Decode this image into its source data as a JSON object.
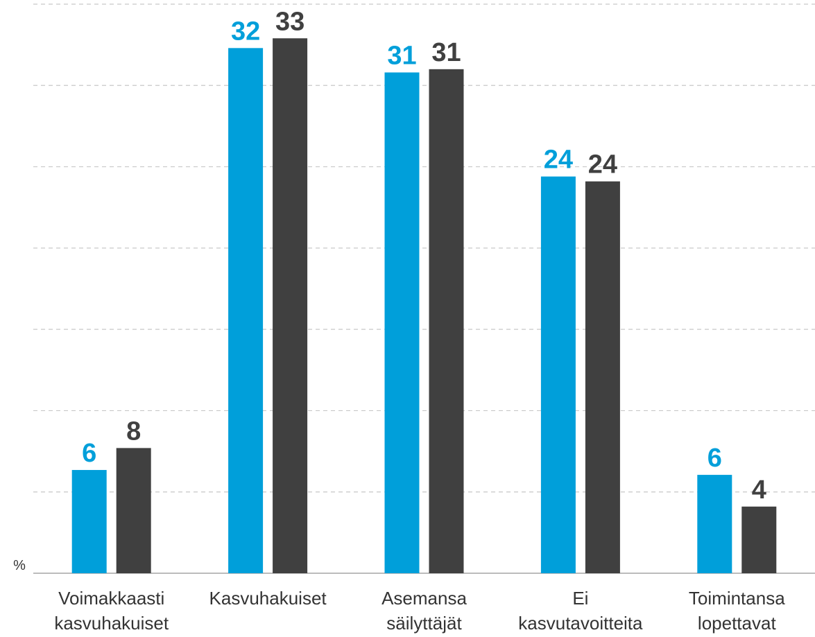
{
  "chart_data": {
    "type": "bar",
    "y_label": "%",
    "categories": [
      [
        "Voimakkaasti",
        "kasvuhakuiset"
      ],
      [
        "Kasvuhakuiset"
      ],
      [
        "Asemansa",
        "säilyttäjät"
      ],
      [
        "Ei",
        "kasvutavoitteita"
      ],
      [
        "Toimintansa",
        "lopettavat"
      ]
    ],
    "series": [
      {
        "color": "#009fda",
        "values": [
          6.35,
          32.3,
          30.8,
          24.4,
          6.05
        ],
        "value_labels": [
          "6",
          "32",
          "31",
          "24",
          "6"
        ]
      },
      {
        "color": "#404040",
        "values": [
          7.7,
          32.9,
          31.0,
          24.1,
          4.1
        ],
        "value_labels": [
          "8",
          "33",
          "31",
          "24",
          "4"
        ]
      }
    ],
    "ylim": [
      0,
      35
    ],
    "yticks": [
      0,
      5,
      10,
      15,
      20,
      25,
      30,
      35
    ],
    "grid": true
  }
}
